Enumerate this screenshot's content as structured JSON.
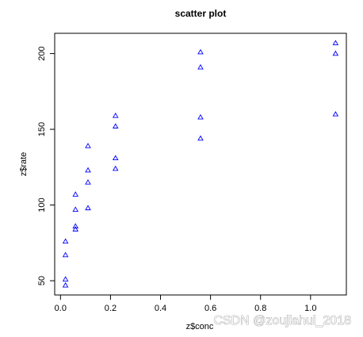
{
  "chart_data": {
    "type": "scatter",
    "title": "scatter plot",
    "x_label": "z$conc",
    "y_label": "z$rate",
    "x": [
      0.02,
      0.02,
      0.06,
      0.06,
      0.11,
      0.11,
      0.22,
      0.22,
      0.56,
      0.56,
      1.1,
      1.1,
      0.02,
      0.02,
      0.06,
      0.06,
      0.11,
      0.11,
      0.22,
      0.22,
      0.56,
      0.56,
      1.1
    ],
    "values": [
      76,
      47,
      97,
      107,
      123,
      139,
      159,
      152,
      191,
      201,
      207,
      200,
      67,
      51,
      84,
      86,
      98,
      115,
      131,
      124,
      144,
      158,
      160
    ],
    "color": "#0000ff",
    "marker": "triangle",
    "xlim": [
      -0.0232,
      1.1432
    ],
    "ylim": [
      40.6,
      213.4
    ],
    "xticks": [
      {
        "value": 0,
        "label": "0.0"
      },
      0.2,
      0.4,
      0.6,
      0.8,
      {
        "value": 1,
        "label": "1.0"
      }
    ],
    "yticks": [
      50,
      100,
      150,
      200
    ],
    "grid": false,
    "watermark": "CSDN @zoujiahui_2018"
  }
}
